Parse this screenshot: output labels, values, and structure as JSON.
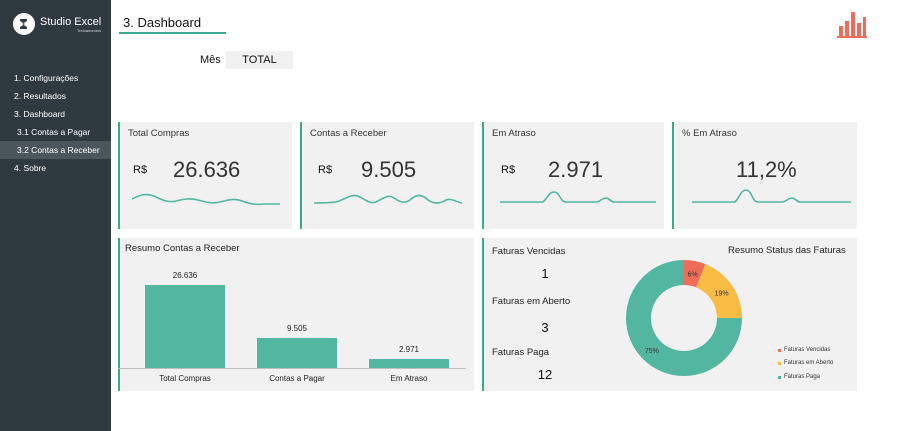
{
  "app": {
    "logo_title": "Studio Excel",
    "logo_sub": "Treinamentos"
  },
  "sidebar": {
    "items": [
      {
        "label": "1. Configurações"
      },
      {
        "label": "2. Resultados"
      },
      {
        "label": "3. Dashboard"
      },
      {
        "label": "3.1 Contas a Pagar"
      },
      {
        "label": "3.2 Contas a Receber",
        "active": true
      },
      {
        "label": "4. Sobre"
      }
    ]
  },
  "header": {
    "title": "3. Dashboard"
  },
  "filter": {
    "label": "Mês",
    "value": "TOTAL"
  },
  "cards": [
    {
      "title": "Total Compras",
      "currency": "R$",
      "value": "26.636"
    },
    {
      "title": "Contas a Receber",
      "currency": "R$",
      "value": "9.505"
    },
    {
      "title": "Em Atraso",
      "currency": "R$",
      "value": "2.971"
    },
    {
      "title": "% Em Atraso",
      "value": "11,2%"
    }
  ],
  "resumo": {
    "title": "Resumo Contas a Receber",
    "chart_data": {
      "type": "bar",
      "categories": [
        "Total Compras",
        "Contas a Pagar",
        "Em Atraso"
      ],
      "values": [
        26636,
        9505,
        2971
      ],
      "value_labels": [
        "26.636",
        "9.505",
        "2.971"
      ]
    }
  },
  "faturas": {
    "title": "Resumo Status das Faturas",
    "stats": [
      {
        "label": "Faturas Vencidas",
        "value": "1"
      },
      {
        "label": "Faturas em Aberto",
        "value": "3"
      },
      {
        "label": "Faturas Paga",
        "value": "12"
      }
    ],
    "chart_data": {
      "type": "pie",
      "categories": [
        "Faturas Vencidas",
        "Faturas em Aberto",
        "Faturas Paga"
      ],
      "values": [
        6,
        19,
        75
      ],
      "value_labels": [
        "6%",
        "19%",
        "75%"
      ],
      "colors": [
        "#ef6b5a",
        "#f8bb44",
        "#53b6a0"
      ],
      "legend_position": "bottom-right"
    }
  },
  "colors": {
    "accent": "#3aa98c",
    "bar": "#53b6a0",
    "sidebar": "#2f3a40",
    "icon": "#ef6b5a"
  }
}
